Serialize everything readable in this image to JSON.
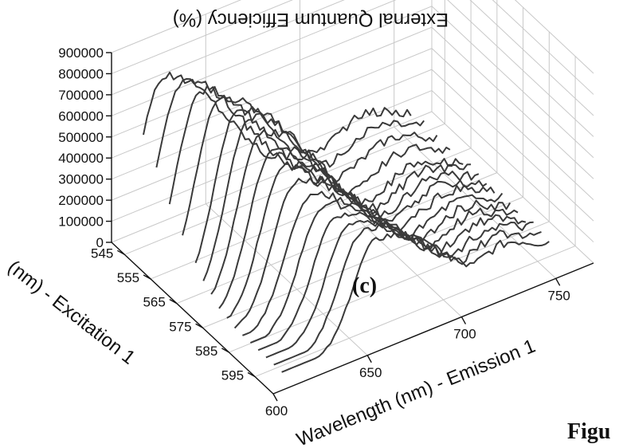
{
  "figure": {
    "panel_label": "(c)",
    "fig_fragment": "Figu"
  },
  "chart_data": {
    "type": "line",
    "subtype": "3d-waterfall",
    "zlabel": "External Quantum Efficiency (%)",
    "xlabel": "Wavelength (nm) - Emission 1",
    "ylabel": "(nm) - Excitation 1",
    "z_ticks": [
      "0",
      "100000",
      "200000",
      "300000",
      "400000",
      "500000",
      "600000",
      "700000",
      "800000",
      "900000"
    ],
    "x_ticks": [
      "600",
      "650",
      "700",
      "750"
    ],
    "y_ticks": [
      "545",
      "555",
      "565",
      "575",
      "585",
      "595"
    ],
    "zlim": [
      0,
      900000
    ],
    "xlim": [
      600,
      770
    ],
    "ylim": [
      540,
      602
    ],
    "grid": true,
    "series": [
      {
        "excitation": 545,
        "peak_emission": 620,
        "peak": 760000
      },
      {
        "excitation": 550,
        "peak_emission": 623,
        "peak": 780000
      },
      {
        "excitation": 555,
        "peak_emission": 626,
        "peak": 790000
      },
      {
        "excitation": 560,
        "peak_emission": 629,
        "peak": 800000
      },
      {
        "excitation": 565,
        "peak_emission": 632,
        "peak": 800000
      },
      {
        "excitation": 568,
        "peak_emission": 634,
        "peak": 780000
      },
      {
        "excitation": 571,
        "peak_emission": 636,
        "peak": 740000
      },
      {
        "excitation": 574,
        "peak_emission": 638,
        "peak": 690000
      },
      {
        "excitation": 577,
        "peak_emission": 640,
        "peak": 640000
      },
      {
        "excitation": 580,
        "peak_emission": 642,
        "peak": 590000
      },
      {
        "excitation": 583,
        "peak_emission": 645,
        "peak": 540000
      },
      {
        "excitation": 586,
        "peak_emission": 648,
        "peak": 520000
      },
      {
        "excitation": 589,
        "peak_emission": 651,
        "peak": 500000
      },
      {
        "excitation": 592,
        "peak_emission": 654,
        "peak": 490000
      },
      {
        "excitation": 595,
        "peak_emission": 657,
        "peak": 480000
      },
      {
        "excitation": 598,
        "peak_emission": 660,
        "peak": 470000
      }
    ]
  }
}
